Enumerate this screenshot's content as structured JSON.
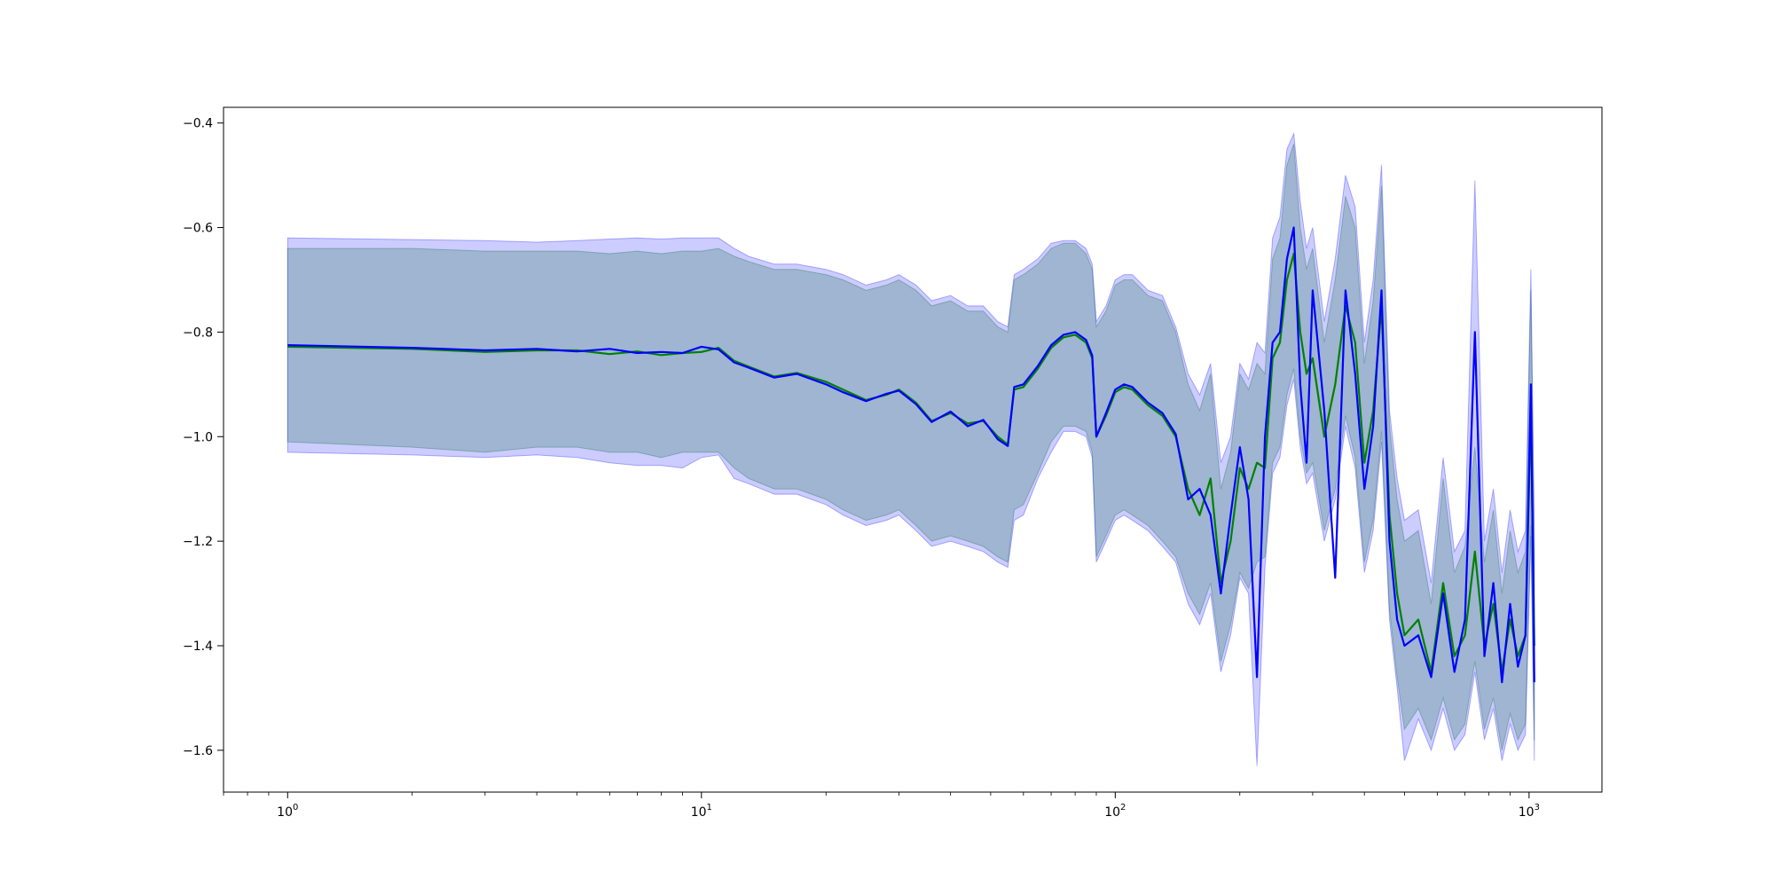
{
  "chart_data": {
    "type": "line",
    "title": "",
    "xlabel": "",
    "ylabel": "",
    "xscale": "log",
    "xlim": [
      0.7,
      1500
    ],
    "ylim": [
      -1.68,
      -0.37
    ],
    "grid": false,
    "legend": "none",
    "xticks": [
      {
        "value": 1,
        "base": "10",
        "exp": "0"
      },
      {
        "value": 10,
        "base": "10",
        "exp": "1"
      },
      {
        "value": 100,
        "base": "10",
        "exp": "2"
      },
      {
        "value": 1000,
        "base": "10",
        "exp": "3"
      }
    ],
    "yticks": [
      {
        "value": -1.6,
        "label": "−1.6"
      },
      {
        "value": -1.4,
        "label": "−1.4"
      },
      {
        "value": -1.2,
        "label": "−1.2"
      },
      {
        "value": -1.0,
        "label": "−1.0"
      },
      {
        "value": -0.8,
        "label": "−0.8"
      },
      {
        "value": -0.6,
        "label": "−0.6"
      },
      {
        "value": -0.4,
        "label": "−0.4"
      }
    ],
    "series": [
      {
        "color": "#008000",
        "band_color": "#008000",
        "x": [
          1,
          2,
          3,
          4,
          5,
          6,
          7,
          8,
          9,
          10,
          11,
          12,
          13,
          15,
          17,
          20,
          22,
          25,
          28,
          30,
          33,
          36,
          40,
          44,
          48,
          52,
          55,
          57,
          60,
          65,
          70,
          75,
          80,
          85,
          88,
          90,
          95,
          100,
          105,
          110,
          120,
          130,
          140,
          150,
          160,
          170,
          180,
          190,
          200,
          210,
          220,
          230,
          240,
          250,
          260,
          270,
          280,
          290,
          300,
          320,
          340,
          360,
          380,
          400,
          420,
          440,
          460,
          480,
          500,
          540,
          580,
          620,
          660,
          700,
          740,
          780,
          820,
          860,
          900,
          940,
          980,
          1010,
          1030
        ],
        "y": [
          -0.828,
          -0.832,
          -0.838,
          -0.835,
          -0.835,
          -0.842,
          -0.837,
          -0.844,
          -0.84,
          -0.838,
          -0.83,
          -0.855,
          -0.866,
          -0.885,
          -0.878,
          -0.895,
          -0.91,
          -0.93,
          -0.92,
          -0.91,
          -0.935,
          -0.97,
          -0.955,
          -0.975,
          -0.97,
          -1.0,
          -1.015,
          -0.91,
          -0.905,
          -0.87,
          -0.83,
          -0.81,
          -0.805,
          -0.82,
          -0.85,
          -1.0,
          -0.96,
          -0.915,
          -0.905,
          -0.91,
          -0.94,
          -0.96,
          -1.0,
          -1.1,
          -1.15,
          -1.08,
          -1.28,
          -1.2,
          -1.06,
          -1.1,
          -1.05,
          -1.06,
          -0.85,
          -0.82,
          -0.7,
          -0.65,
          -0.8,
          -0.88,
          -0.85,
          -1.0,
          -0.9,
          -0.75,
          -0.82,
          -1.05,
          -0.95,
          -0.75,
          -1.15,
          -1.3,
          -1.38,
          -1.35,
          -1.45,
          -1.28,
          -1.42,
          -1.38,
          -1.22,
          -1.4,
          -1.32,
          -1.45,
          -1.35,
          -1.42,
          -1.38,
          -0.95,
          -1.4
        ],
        "lower": [
          -1.01,
          -1.02,
          -1.03,
          -1.02,
          -1.02,
          -1.03,
          -1.03,
          -1.04,
          -1.03,
          -1.03,
          -1.03,
          -1.06,
          -1.08,
          -1.1,
          -1.1,
          -1.12,
          -1.14,
          -1.16,
          -1.15,
          -1.14,
          -1.17,
          -1.2,
          -1.19,
          -1.2,
          -1.21,
          -1.23,
          -1.24,
          -1.14,
          -1.13,
          -1.07,
          -1.01,
          -0.98,
          -0.98,
          -0.99,
          -1.03,
          -1.23,
          -1.19,
          -1.15,
          -1.14,
          -1.15,
          -1.17,
          -1.2,
          -1.23,
          -1.3,
          -1.34,
          -1.28,
          -1.43,
          -1.36,
          -1.26,
          -1.29,
          -1.24,
          -1.23,
          -1.05,
          -1.02,
          -0.92,
          -0.87,
          -1.0,
          -1.07,
          -1.05,
          -1.18,
          -1.1,
          -0.96,
          -1.04,
          -1.24,
          -1.16,
          -0.99,
          -1.33,
          -1.46,
          -1.56,
          -1.52,
          -1.58,
          -1.5,
          -1.58,
          -1.55,
          -1.43,
          -1.56,
          -1.5,
          -1.6,
          -1.53,
          -1.58,
          -1.55,
          -1.17,
          -1.58
        ],
        "upper": [
          -0.64,
          -0.64,
          -0.645,
          -0.645,
          -0.645,
          -0.65,
          -0.645,
          -0.65,
          -0.645,
          -0.645,
          -0.64,
          -0.655,
          -0.665,
          -0.68,
          -0.68,
          -0.69,
          -0.7,
          -0.72,
          -0.71,
          -0.7,
          -0.72,
          -0.75,
          -0.74,
          -0.76,
          -0.76,
          -0.79,
          -0.8,
          -0.7,
          -0.69,
          -0.67,
          -0.64,
          -0.63,
          -0.63,
          -0.65,
          -0.68,
          -0.79,
          -0.76,
          -0.71,
          -0.7,
          -0.7,
          -0.73,
          -0.74,
          -0.8,
          -0.9,
          -0.95,
          -0.88,
          -1.1,
          -1.03,
          -0.88,
          -0.91,
          -0.86,
          -0.88,
          -0.66,
          -0.62,
          -0.48,
          -0.44,
          -0.6,
          -0.68,
          -0.64,
          -0.82,
          -0.7,
          -0.54,
          -0.6,
          -0.86,
          -0.74,
          -0.52,
          -0.98,
          -1.12,
          -1.2,
          -1.18,
          -1.32,
          -1.08,
          -1.26,
          -1.21,
          -1.02,
          -1.24,
          -1.14,
          -1.3,
          -1.18,
          -1.26,
          -1.22,
          -0.72,
          -1.22
        ]
      },
      {
        "color": "#0000ff",
        "band_color": "#0000ff",
        "x": [
          1,
          2,
          3,
          4,
          5,
          6,
          7,
          8,
          9,
          10,
          11,
          12,
          13,
          15,
          17,
          20,
          22,
          25,
          28,
          30,
          33,
          36,
          40,
          44,
          48,
          52,
          55,
          57,
          60,
          65,
          70,
          75,
          80,
          85,
          88,
          90,
          95,
          100,
          105,
          110,
          120,
          130,
          140,
          150,
          160,
          170,
          180,
          190,
          200,
          210,
          220,
          230,
          240,
          250,
          260,
          270,
          280,
          290,
          300,
          320,
          340,
          360,
          380,
          400,
          420,
          440,
          460,
          480,
          500,
          540,
          580,
          620,
          660,
          700,
          740,
          780,
          820,
          860,
          900,
          940,
          980,
          1010,
          1030
        ],
        "y": [
          -0.825,
          -0.83,
          -0.835,
          -0.832,
          -0.837,
          -0.832,
          -0.84,
          -0.838,
          -0.84,
          -0.828,
          -0.833,
          -0.858,
          -0.868,
          -0.887,
          -0.88,
          -0.9,
          -0.915,
          -0.932,
          -0.918,
          -0.912,
          -0.938,
          -0.972,
          -0.952,
          -0.98,
          -0.968,
          -1.005,
          -1.018,
          -0.905,
          -0.9,
          -0.865,
          -0.825,
          -0.805,
          -0.8,
          -0.815,
          -0.845,
          -1.0,
          -0.955,
          -0.91,
          -0.9,
          -0.905,
          -0.935,
          -0.955,
          -0.995,
          -1.12,
          -1.1,
          -1.15,
          -1.3,
          -1.15,
          -1.02,
          -1.12,
          -1.46,
          -1.0,
          -0.82,
          -0.8,
          -0.66,
          -0.6,
          -0.9,
          -1.05,
          -0.72,
          -0.95,
          -1.27,
          -0.72,
          -0.88,
          -1.1,
          -0.98,
          -0.72,
          -1.2,
          -1.35,
          -1.4,
          -1.38,
          -1.46,
          -1.3,
          -1.45,
          -1.35,
          -0.8,
          -1.42,
          -1.28,
          -1.47,
          -1.32,
          -1.44,
          -1.38,
          -0.9,
          -1.47
        ],
        "lower": [
          -1.03,
          -1.035,
          -1.04,
          -1.035,
          -1.04,
          -1.05,
          -1.055,
          -1.055,
          -1.06,
          -1.04,
          -1.035,
          -1.08,
          -1.09,
          -1.11,
          -1.11,
          -1.13,
          -1.15,
          -1.17,
          -1.16,
          -1.15,
          -1.18,
          -1.21,
          -1.2,
          -1.21,
          -1.22,
          -1.24,
          -1.25,
          -1.16,
          -1.15,
          -1.08,
          -1.03,
          -0.99,
          -0.99,
          -1.0,
          -1.04,
          -1.24,
          -1.2,
          -1.16,
          -1.15,
          -1.16,
          -1.18,
          -1.21,
          -1.24,
          -1.32,
          -1.36,
          -1.3,
          -1.45,
          -1.38,
          -1.27,
          -1.3,
          -1.63,
          -1.25,
          -1.07,
          -1.04,
          -0.94,
          -0.89,
          -1.02,
          -1.09,
          -1.07,
          -1.2,
          -1.12,
          -0.98,
          -1.06,
          -1.26,
          -1.18,
          -1.01,
          -1.35,
          -1.48,
          -1.62,
          -1.54,
          -1.6,
          -1.52,
          -1.6,
          -1.57,
          -1.45,
          -1.58,
          -1.52,
          -1.62,
          -1.55,
          -1.6,
          -1.57,
          -1.19,
          -1.62
        ],
        "upper": [
          -0.62,
          -0.623,
          -0.625,
          -0.628,
          -0.625,
          -0.622,
          -0.62,
          -0.622,
          -0.62,
          -0.62,
          -0.62,
          -0.64,
          -0.655,
          -0.67,
          -0.67,
          -0.68,
          -0.69,
          -0.71,
          -0.7,
          -0.69,
          -0.71,
          -0.74,
          -0.73,
          -0.75,
          -0.75,
          -0.78,
          -0.79,
          -0.69,
          -0.68,
          -0.66,
          -0.63,
          -0.625,
          -0.625,
          -0.64,
          -0.67,
          -0.78,
          -0.75,
          -0.7,
          -0.69,
          -0.69,
          -0.72,
          -0.73,
          -0.79,
          -0.88,
          -0.92,
          -0.86,
          -1.05,
          -1.0,
          -0.86,
          -0.89,
          -0.82,
          -0.84,
          -0.62,
          -0.58,
          -0.45,
          -0.42,
          -0.55,
          -0.64,
          -0.6,
          -0.78,
          -0.66,
          -0.5,
          -0.56,
          -0.82,
          -0.7,
          -0.48,
          -0.95,
          -1.08,
          -1.16,
          -1.14,
          -1.28,
          -1.04,
          -1.22,
          -1.18,
          -0.51,
          -1.2,
          -1.1,
          -1.26,
          -1.14,
          -1.22,
          -1.18,
          -0.68,
          -1.18
        ]
      }
    ]
  }
}
